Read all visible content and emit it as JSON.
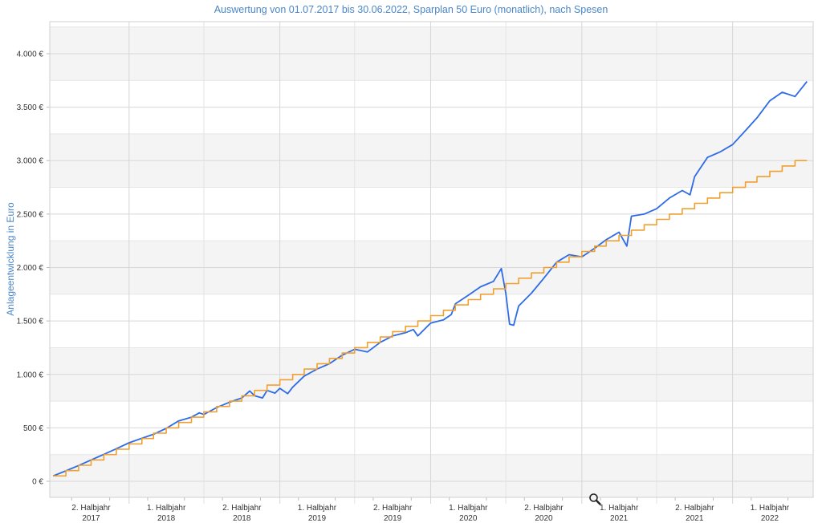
{
  "chart_data": {
    "type": "line",
    "title": "Auswertung von 01.07.2017 bis 30.06.2022, Sparplan 50 Euro (monatlich), nach Spesen",
    "ylabel": "Anlageentwicklung  in Euro",
    "xlabel": "",
    "ylim": [
      -150,
      4300
    ],
    "xlim": [
      "2017-06-23",
      "2022-07-15"
    ],
    "y_ticks": [
      {
        "value": 0,
        "label": "0 €"
      },
      {
        "value": 500,
        "label": "500 €"
      },
      {
        "value": 1000,
        "label": "1.000 €"
      },
      {
        "value": 1500,
        "label": "1.500 €"
      },
      {
        "value": 2000,
        "label": "2.000 €"
      },
      {
        "value": 2500,
        "label": "2.500 €"
      },
      {
        "value": 3000,
        "label": "3.000 €"
      },
      {
        "value": 3500,
        "label": "3.500 €"
      },
      {
        "value": 4000,
        "label": "4.000 €"
      }
    ],
    "x_ticks": [
      {
        "date": "2017-10-01",
        "line1": "2. Halbjahr",
        "line2": "2017"
      },
      {
        "date": "2018-04-01",
        "line1": "1. Halbjahr",
        "line2": "2018"
      },
      {
        "date": "2018-10-01",
        "line1": "2. Halbjahr",
        "line2": "2018"
      },
      {
        "date": "2019-04-01",
        "line1": "1. Halbjahr",
        "line2": "2019"
      },
      {
        "date": "2019-10-01",
        "line1": "2. Halbjahr",
        "line2": "2019"
      },
      {
        "date": "2020-04-01",
        "line1": "1. Halbjahr",
        "line2": "2020"
      },
      {
        "date": "2020-10-01",
        "line1": "2. Halbjahr",
        "line2": "2020"
      },
      {
        "date": "2021-04-01",
        "line1": "1. Halbjahr",
        "line2": "2021"
      },
      {
        "date": "2021-10-01",
        "line1": "2. Halbjahr",
        "line2": "2021"
      },
      {
        "date": "2022-04-01",
        "line1": "1. Halbjahr",
        "line2": "2022"
      }
    ],
    "grid": true,
    "series": [
      {
        "color": "#2e6be6",
        "points": [
          [
            "2017-07-01",
            50
          ],
          [
            "2017-08-01",
            98
          ],
          [
            "2017-09-01",
            148
          ],
          [
            "2017-10-01",
            200
          ],
          [
            "2017-11-01",
            252
          ],
          [
            "2017-12-01",
            305
          ],
          [
            "2018-01-01",
            360
          ],
          [
            "2018-02-01",
            402
          ],
          [
            "2018-03-01",
            440
          ],
          [
            "2018-04-01",
            495
          ],
          [
            "2018-05-01",
            565
          ],
          [
            "2018-06-01",
            600
          ],
          [
            "2018-06-20",
            640
          ],
          [
            "2018-07-01",
            625
          ],
          [
            "2018-08-01",
            690
          ],
          [
            "2018-09-01",
            740
          ],
          [
            "2018-10-01",
            780
          ],
          [
            "2018-10-20",
            845
          ],
          [
            "2018-11-01",
            800
          ],
          [
            "2018-11-20",
            780
          ],
          [
            "2018-12-01",
            850
          ],
          [
            "2018-12-20",
            825
          ],
          [
            "2019-01-01",
            870
          ],
          [
            "2019-01-20",
            820
          ],
          [
            "2019-02-01",
            880
          ],
          [
            "2019-03-01",
            985
          ],
          [
            "2019-04-01",
            1050
          ],
          [
            "2019-05-01",
            1100
          ],
          [
            "2019-06-01",
            1180
          ],
          [
            "2019-07-01",
            1235
          ],
          [
            "2019-08-01",
            1210
          ],
          [
            "2019-09-01",
            1300
          ],
          [
            "2019-10-01",
            1360
          ],
          [
            "2019-11-01",
            1390
          ],
          [
            "2019-11-20",
            1420
          ],
          [
            "2019-12-01",
            1360
          ],
          [
            "2020-01-01",
            1480
          ],
          [
            "2020-02-01",
            1510
          ],
          [
            "2020-02-20",
            1560
          ],
          [
            "2020-03-01",
            1660
          ],
          [
            "2020-04-01",
            1740
          ],
          [
            "2020-05-01",
            1820
          ],
          [
            "2020-06-01",
            1870
          ],
          [
            "2020-06-20",
            1990
          ],
          [
            "2020-07-01",
            1760
          ],
          [
            "2020-07-10",
            1470
          ],
          [
            "2020-07-20",
            1460
          ],
          [
            "2020-08-01",
            1640
          ],
          [
            "2020-09-01",
            1760
          ],
          [
            "2020-10-01",
            1900
          ],
          [
            "2020-11-01",
            2050
          ],
          [
            "2020-12-01",
            2120
          ],
          [
            "2021-01-01",
            2100
          ],
          [
            "2021-02-01",
            2180
          ],
          [
            "2021-03-01",
            2260
          ],
          [
            "2021-04-01",
            2330
          ],
          [
            "2021-04-20",
            2200
          ],
          [
            "2021-05-01",
            2480
          ],
          [
            "2021-06-01",
            2500
          ],
          [
            "2021-07-01",
            2550
          ],
          [
            "2021-08-01",
            2650
          ],
          [
            "2021-09-01",
            2720
          ],
          [
            "2021-09-20",
            2680
          ],
          [
            "2021-10-01",
            2850
          ],
          [
            "2021-11-01",
            3030
          ],
          [
            "2021-12-01",
            3080
          ],
          [
            "2022-01-01",
            3150
          ],
          [
            "2022-02-01",
            3280
          ],
          [
            "2022-03-01",
            3400
          ],
          [
            "2022-04-01",
            3560
          ],
          [
            "2022-05-01",
            3640
          ],
          [
            "2022-06-01",
            3600
          ],
          [
            "2022-06-30",
            3740
          ]
        ]
      },
      {
        "color": "#f0a030",
        "step": true,
        "points": [
          [
            "2017-07-01",
            50
          ],
          [
            "2017-08-01",
            100
          ],
          [
            "2017-09-01",
            150
          ],
          [
            "2017-10-01",
            200
          ],
          [
            "2017-11-01",
            250
          ],
          [
            "2017-12-01",
            300
          ],
          [
            "2018-01-01",
            350
          ],
          [
            "2018-02-01",
            400
          ],
          [
            "2018-03-01",
            450
          ],
          [
            "2018-04-01",
            500
          ],
          [
            "2018-05-01",
            550
          ],
          [
            "2018-06-01",
            600
          ],
          [
            "2018-07-01",
            650
          ],
          [
            "2018-08-01",
            700
          ],
          [
            "2018-09-01",
            750
          ],
          [
            "2018-10-01",
            800
          ],
          [
            "2018-11-01",
            850
          ],
          [
            "2018-12-01",
            900
          ],
          [
            "2019-01-01",
            950
          ],
          [
            "2019-02-01",
            1000
          ],
          [
            "2019-03-01",
            1050
          ],
          [
            "2019-04-01",
            1100
          ],
          [
            "2019-05-01",
            1150
          ],
          [
            "2019-06-01",
            1200
          ],
          [
            "2019-07-01",
            1250
          ],
          [
            "2019-08-01",
            1300
          ],
          [
            "2019-09-01",
            1350
          ],
          [
            "2019-10-01",
            1400
          ],
          [
            "2019-11-01",
            1450
          ],
          [
            "2019-12-01",
            1500
          ],
          [
            "2020-01-01",
            1550
          ],
          [
            "2020-02-01",
            1600
          ],
          [
            "2020-03-01",
            1650
          ],
          [
            "2020-04-01",
            1700
          ],
          [
            "2020-05-01",
            1750
          ],
          [
            "2020-06-01",
            1800
          ],
          [
            "2020-07-01",
            1850
          ],
          [
            "2020-08-01",
            1900
          ],
          [
            "2020-09-01",
            1950
          ],
          [
            "2020-10-01",
            2000
          ],
          [
            "2020-11-01",
            2050
          ],
          [
            "2020-12-01",
            2100
          ],
          [
            "2021-01-01",
            2150
          ],
          [
            "2021-02-01",
            2200
          ],
          [
            "2021-03-01",
            2250
          ],
          [
            "2021-04-01",
            2300
          ],
          [
            "2021-05-01",
            2350
          ],
          [
            "2021-06-01",
            2400
          ],
          [
            "2021-07-01",
            2450
          ],
          [
            "2021-08-01",
            2500
          ],
          [
            "2021-09-01",
            2550
          ],
          [
            "2021-10-01",
            2600
          ],
          [
            "2021-11-01",
            2650
          ],
          [
            "2021-12-01",
            2700
          ],
          [
            "2022-01-01",
            2750
          ],
          [
            "2022-02-01",
            2800
          ],
          [
            "2022-03-01",
            2850
          ],
          [
            "2022-04-01",
            2900
          ],
          [
            "2022-05-01",
            2950
          ],
          [
            "2022-06-01",
            3000
          ],
          [
            "2022-06-30",
            3000
          ]
        ]
      }
    ]
  },
  "zoom_icon": "magnifier-icon"
}
